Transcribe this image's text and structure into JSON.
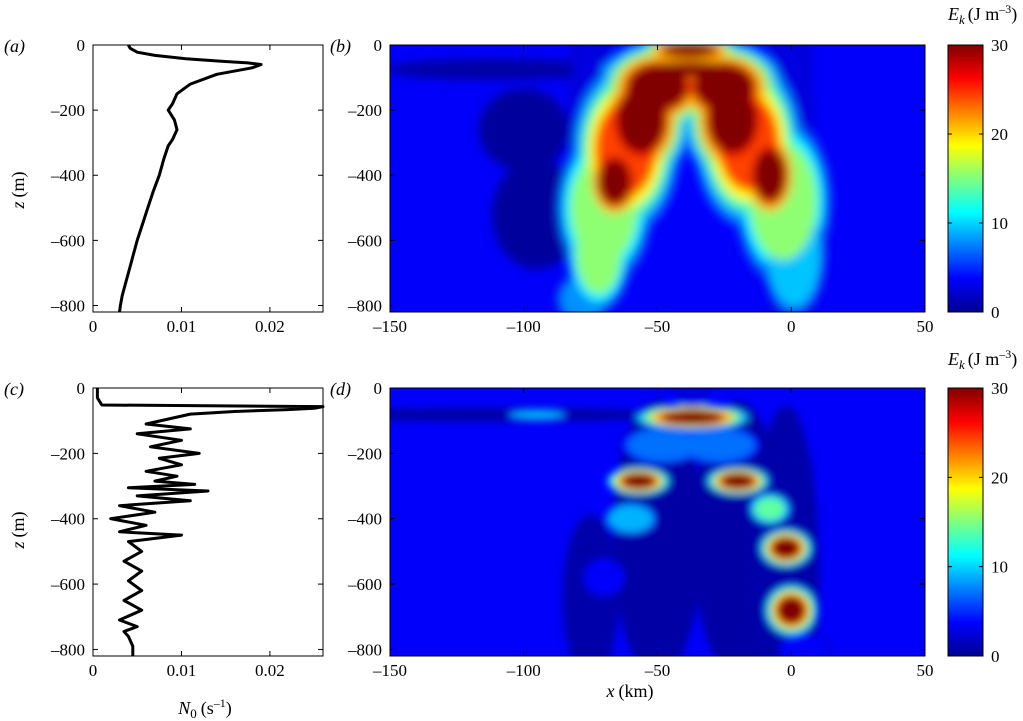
{
  "chart_data": [
    {
      "panel": "a",
      "panel_label": "(a)",
      "type": "line",
      "ylabel": "z (m)",
      "xlim": [
        0,
        0.026
      ],
      "ylim": [
        -820,
        0
      ],
      "xticks": [
        0,
        0.01,
        0.02
      ],
      "xtick_labels": [
        "0",
        "0.01",
        "0.02"
      ],
      "yticks": [
        0,
        -200,
        -400,
        -600,
        -800
      ],
      "ytick_labels": [
        "0",
        "–200",
        "–400",
        "–600",
        "–800"
      ],
      "series": [
        {
          "x": [
            0.004,
            0.0042,
            0.005,
            0.007,
            0.0105,
            0.0145,
            0.0175,
            0.019,
            0.018,
            0.014,
            0.011,
            0.0095,
            0.009,
            0.0085,
            0.0092,
            0.0095,
            0.009,
            0.0085,
            0.008,
            0.0075,
            0.0068,
            0.0062,
            0.0056,
            0.005,
            0.0045,
            0.004,
            0.0036,
            0.0033,
            0.0031,
            0.003
          ],
          "y": [
            0,
            -10,
            -22,
            -32,
            -42,
            -50,
            -55,
            -60,
            -70,
            -90,
            -120,
            -150,
            -180,
            -200,
            -230,
            -260,
            -290,
            -310,
            -350,
            -400,
            -450,
            -500,
            -550,
            -600,
            -650,
            -700,
            -740,
            -770,
            -800,
            -820
          ]
        }
      ]
    },
    {
      "panel": "b",
      "panel_label": "(b)",
      "type": "heatmap",
      "xlim": [
        -150,
        50
      ],
      "ylim": [
        -820,
        0
      ],
      "xticks": [
        -150,
        -100,
        -50,
        0,
        50
      ],
      "xtick_labels": [
        "–150",
        "–100",
        "–50",
        "0",
        "50"
      ],
      "yticks": [
        0,
        -200,
        -400,
        -600,
        -800
      ],
      "ytick_labels": [
        "0",
        "–200",
        "–400",
        "–600",
        "–800"
      ],
      "clim": [
        0,
        30
      ],
      "colorbar_label": "E_k (J m^-3)",
      "colorbar_ticks": [
        "0",
        "10",
        "20",
        "30"
      ]
    },
    {
      "panel": "c",
      "panel_label": "(c)",
      "type": "line",
      "xlabel": "N0 (s^-1)",
      "ylabel": "z (m)",
      "xlim": [
        0,
        0.026
      ],
      "ylim": [
        -820,
        0
      ],
      "xticks": [
        0,
        0.01,
        0.02
      ],
      "xtick_labels": [
        "0",
        "0.01",
        "0.02"
      ],
      "yticks": [
        0,
        -200,
        -400,
        -600,
        -800
      ],
      "ytick_labels": [
        "0",
        "–200",
        "–400",
        "–600",
        "–800"
      ],
      "series": [
        {
          "x": [
            0.0005,
            0.0005,
            0.001,
            0.026,
            0.025,
            0.022,
            0.016,
            0.011,
            0.006,
            0.011,
            0.005,
            0.01,
            0.0065,
            0.012,
            0.0075,
            0.01,
            0.006,
            0.0095,
            0.007,
            0.0115,
            0.004,
            0.013,
            0.005,
            0.011,
            0.003,
            0.007,
            0.002,
            0.006,
            0.003,
            0.01,
            0.004,
            0.0055,
            0.0035,
            0.0055,
            0.004,
            0.0055,
            0.0035,
            0.0055,
            0.003,
            0.005,
            0.0035,
            0.004,
            0.0045,
            0.0045
          ],
          "y": [
            0,
            -30,
            -52,
            -57,
            -62,
            -66,
            -72,
            -80,
            -110,
            -125,
            -140,
            -160,
            -180,
            -200,
            -215,
            -235,
            -255,
            -270,
            -285,
            -295,
            -305,
            -315,
            -330,
            -345,
            -360,
            -380,
            -400,
            -420,
            -440,
            -450,
            -470,
            -500,
            -530,
            -560,
            -590,
            -620,
            -650,
            -680,
            -710,
            -730,
            -745,
            -760,
            -790,
            -820
          ]
        }
      ]
    },
    {
      "panel": "d",
      "panel_label": "(d)",
      "type": "heatmap",
      "xlabel": "x (km)",
      "xlim": [
        -150,
        50
      ],
      "ylim": [
        -820,
        0
      ],
      "xticks": [
        -150,
        -100,
        -50,
        0,
        50
      ],
      "xtick_labels": [
        "–150",
        "–100",
        "–50",
        "0",
        "50"
      ],
      "yticks": [
        0,
        -200,
        -400,
        -600,
        -800
      ],
      "ytick_labels": [
        "0",
        "–200",
        "–400",
        "–600",
        "–800"
      ],
      "clim": [
        0,
        30
      ],
      "colorbar_label": "E_k (J m^-3)",
      "colorbar_ticks": [
        "0",
        "10",
        "20",
        "30"
      ]
    }
  ],
  "colormap": [
    "#00008f",
    "#0000ff",
    "#0080ff",
    "#00ffff",
    "#80ff80",
    "#ffff00",
    "#ff8000",
    "#ff0000",
    "#800000"
  ],
  "text": {
    "panel_a": "(a)",
    "panel_b": "(b)",
    "panel_c": "(c)",
    "panel_d": "(d)",
    "z_label_1": "z",
    "z_label_2": "z",
    "z_units": "(m)",
    "x_label": "x",
    "x_units": "(km)",
    "n_label": "N",
    "n_sub": "0",
    "n_units": "(s",
    "n_exp": "–1",
    "n_close": ")",
    "ek_label": "E",
    "ek_sub": "k",
    "ek_units": "(J m",
    "ek_exp": "–3",
    "ek_close": ")"
  }
}
